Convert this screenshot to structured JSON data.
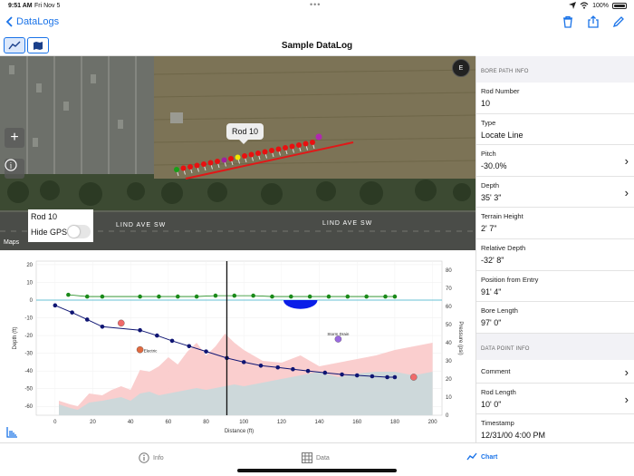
{
  "status": {
    "time": "9:51 AM",
    "date": "Fri Nov 5",
    "battery": "100%"
  },
  "nav": {
    "back_label": "DataLogs",
    "title": "Sample DataLog"
  },
  "map": {
    "tooltip": "Rod 10",
    "overlay_label": "Rod 10",
    "hide_gps_label": "Hide GPS",
    "hide_gps_on": false,
    "street_left": "LIND AVE SW",
    "street_right": "LIND AVE SW",
    "logo": "Maps",
    "compass": "E",
    "zoom_label": "+",
    "info_label": "i"
  },
  "panel": {
    "bore_header": "BORE PATH INFO",
    "bore_fields": [
      {
        "label": "Rod Number",
        "value": "10",
        "chevron": false
      },
      {
        "label": "Type",
        "value": "Locate Line",
        "chevron": false
      },
      {
        "label": "Pitch",
        "value": "-30.0%",
        "chevron": true
      },
      {
        "label": "Depth",
        "value": "35' 3\"",
        "chevron": true
      },
      {
        "label": "Terrain Height",
        "value": "2' 7\"",
        "chevron": false
      },
      {
        "label": "Relative Depth",
        "value": "-32' 8\"",
        "chevron": false
      },
      {
        "label": "Position from Entry",
        "value": "91' 4\"",
        "chevron": false
      },
      {
        "label": "Bore Length",
        "value": "97' 0\"",
        "chevron": false
      }
    ],
    "data_header": "DATA POINT INFO",
    "comment_label": "Comment",
    "rod_length": {
      "label": "Rod Length",
      "value": "10' 0\""
    },
    "timestamp": {
      "label": "Timestamp",
      "value": "12/31/00 4:00 PM"
    }
  },
  "tabs": [
    {
      "label": "Info",
      "active": false
    },
    {
      "label": "Data",
      "active": false
    },
    {
      "label": "Chart",
      "active": true
    }
  ],
  "chart_data": {
    "type": "line",
    "xlabel": "Distance (ft)",
    "ylabel_left": "Depth (ft)",
    "ylabel_right": "Pressure (psi)",
    "xlim": [
      -10,
      205
    ],
    "ylim_left": [
      -65,
      22
    ],
    "ylim_right": [
      0,
      85
    ],
    "x_ticks": [
      0,
      20,
      40,
      60,
      80,
      100,
      120,
      140,
      160,
      180,
      200
    ],
    "y_ticks_left": [
      20,
      10,
      0,
      -10,
      -20,
      -30,
      -40,
      -50,
      -60
    ],
    "y_ticks_right": [
      80,
      70,
      60,
      50,
      40,
      30,
      20,
      10,
      0
    ],
    "cursor_x": 91,
    "bore_path": {
      "x": [
        0,
        9,
        17,
        25,
        45,
        54,
        62,
        71,
        80,
        91,
        100,
        109,
        118,
        126,
        134,
        143,
        152,
        160,
        168,
        176,
        180
      ],
      "y": [
        -3,
        -7,
        -11,
        -15,
        -17,
        -20,
        -23,
        -26,
        -29,
        -32.7,
        -35,
        -37,
        -38,
        -39,
        -40,
        -41,
        -42,
        -42.5,
        -43,
        -43.5,
        -43.5
      ]
    },
    "terrain": {
      "x": [
        7,
        17,
        25,
        45,
        55,
        65,
        75,
        85,
        95,
        105,
        115,
        125,
        135,
        145,
        155,
        165,
        175,
        180
      ],
      "y": [
        3,
        2,
        2,
        2,
        2,
        2,
        2,
        2.5,
        2.5,
        2.5,
        2,
        2,
        2,
        2,
        2,
        2,
        2,
        2
      ]
    },
    "water_body": {
      "x_start": 121,
      "x_end": 139,
      "depth": -5
    },
    "pressure_upper": {
      "x": [
        2,
        8,
        12,
        18,
        25,
        30,
        35,
        40,
        45,
        50,
        55,
        60,
        65,
        70,
        75,
        80,
        85,
        90,
        95,
        100,
        110,
        120,
        130,
        140,
        150,
        160,
        170,
        180,
        190,
        200
      ],
      "y": [
        8,
        6,
        5,
        12,
        11,
        14,
        16,
        14,
        25,
        24,
        27,
        32,
        28,
        35,
        40,
        33,
        38,
        45,
        40,
        36,
        30,
        29,
        33,
        27,
        29,
        31,
        33,
        36,
        38,
        40
      ]
    },
    "pressure_lower": {
      "x": [
        2,
        8,
        12,
        18,
        25,
        30,
        35,
        40,
        45,
        50,
        55,
        60,
        65,
        70,
        75,
        80,
        85,
        90,
        95,
        100,
        110,
        120,
        130,
        140,
        150,
        160,
        170,
        180,
        190,
        200
      ],
      "y": [
        6,
        4,
        3,
        7,
        8,
        9,
        10,
        8,
        12,
        13,
        11,
        12,
        13,
        14,
        15,
        14,
        15,
        16,
        17,
        16,
        18,
        20,
        22,
        24,
        21,
        23,
        24,
        24,
        22,
        24
      ]
    },
    "markers": [
      {
        "x": 35,
        "y": -13,
        "color": "#f06a6a",
        "label": ""
      },
      {
        "x": 45,
        "y": -28,
        "color": "#e06a40",
        "label": "Electric"
      },
      {
        "x": 150,
        "y": -22,
        "color": "#9a6adf",
        "label": "Storm Drain"
      },
      {
        "x": 190,
        "y": -43.5,
        "color": "#f06a6a",
        "label": ""
      }
    ],
    "colors": {
      "bore": "#0f1573",
      "terrain": "#1a8a1a",
      "water": "#0a1ee8",
      "pressure_upper": "#f9c9c9",
      "pressure_lower": "#c8d9dc",
      "cursor": "#111111"
    }
  }
}
